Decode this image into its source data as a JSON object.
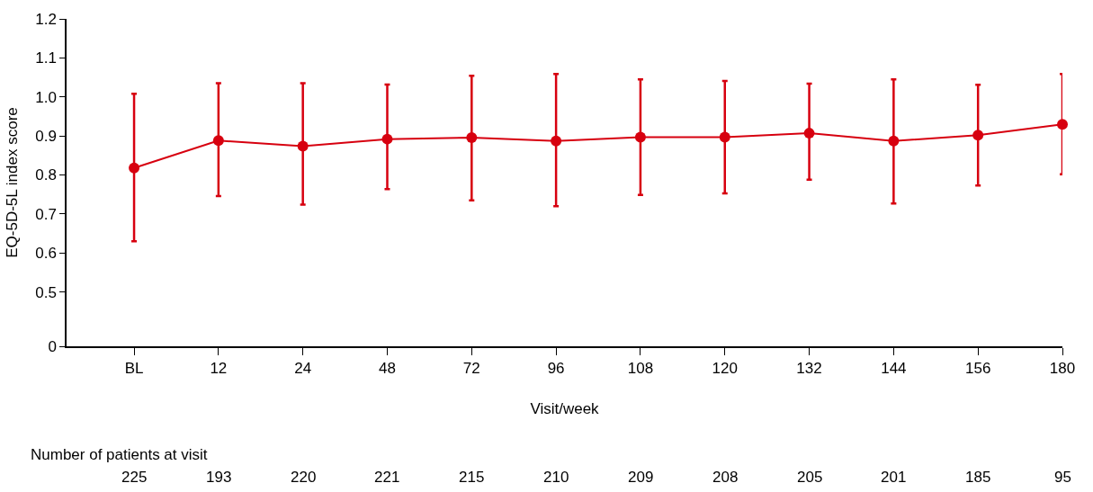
{
  "chart_data": {
    "type": "line",
    "xlabel": "Visit/week",
    "ylabel": "EQ-5D-5L index score",
    "categories": [
      "BL",
      "12",
      "24",
      "48",
      "72",
      "96",
      "108",
      "120",
      "132",
      "144",
      "156",
      "180"
    ],
    "series": [
      {
        "color": "#d7000f",
        "values": [
          0.818,
          0.888,
          0.874,
          0.892,
          0.896,
          0.887,
          0.897,
          0.897,
          0.907,
          0.887,
          0.902,
          0.93
        ],
        "errors": [
          [
            0.63,
            1.008
          ],
          [
            0.746,
            1.035
          ],
          [
            0.724,
            1.035
          ],
          [
            0.764,
            1.032
          ],
          [
            0.735,
            1.054
          ],
          [
            0.72,
            1.059
          ],
          [
            0.749,
            1.045
          ],
          [
            0.753,
            1.041
          ],
          [
            0.788,
            1.034
          ],
          [
            0.727,
            1.045
          ],
          [
            0.773,
            1.031
          ],
          [
            0.802,
            1.059
          ]
        ]
      }
    ],
    "ylim": [
      0.361,
      1.2
    ],
    "yticks": [
      {
        "value": 0.361,
        "label": "0"
      },
      0.5,
      0.6,
      0.7,
      0.8,
      0.9,
      {
        "value": 1.0,
        "label": "1.0"
      },
      1.1,
      1.2
    ],
    "marker": "circle",
    "line_style": "solid",
    "annotations": [
      "Number of patients at visit",
      "225",
      "193",
      "220",
      "221",
      "215",
      "210",
      "209",
      "208",
      "205",
      "201",
      "185",
      "95"
    ]
  }
}
